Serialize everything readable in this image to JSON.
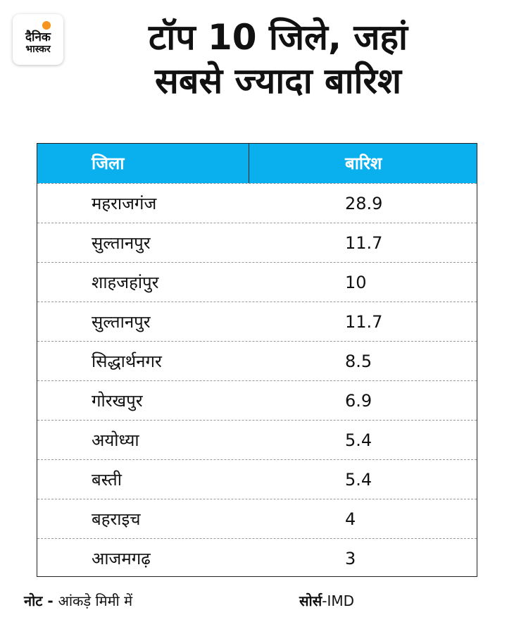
{
  "logo": {
    "line1": "दैनिक",
    "line2": "भास्कर"
  },
  "title": {
    "line1": "टॉप 10 जिले, जहां",
    "line2": "सबसे ज्यादा बारिश"
  },
  "chart_data": {
    "type": "table",
    "columns": [
      "जिला",
      "बारिश"
    ],
    "rows": [
      [
        "महराजगंज",
        "28.9"
      ],
      [
        "सुल्तानपुर",
        "11.7"
      ],
      [
        "शाहजहांपुर",
        "10"
      ],
      [
        "सुल्तानपुर",
        "11.7"
      ],
      [
        "सिद्धार्थनगर",
        "8.5"
      ],
      [
        "गोरखपुर",
        "6.9"
      ],
      [
        "अयोध्या",
        "5.4"
      ],
      [
        "बस्ती",
        "5.4"
      ],
      [
        "बहराइच",
        "4"
      ],
      [
        "आजमगढ़",
        "3"
      ]
    ]
  },
  "footer": {
    "note_label": "नोट - ",
    "note_text": "आंकड़े मिमी में",
    "source_label": "सोर्स",
    "source_text": "-IMD"
  },
  "colors": {
    "header_bg": "#0ab0ee",
    "logo_sun": "#f7941d"
  }
}
